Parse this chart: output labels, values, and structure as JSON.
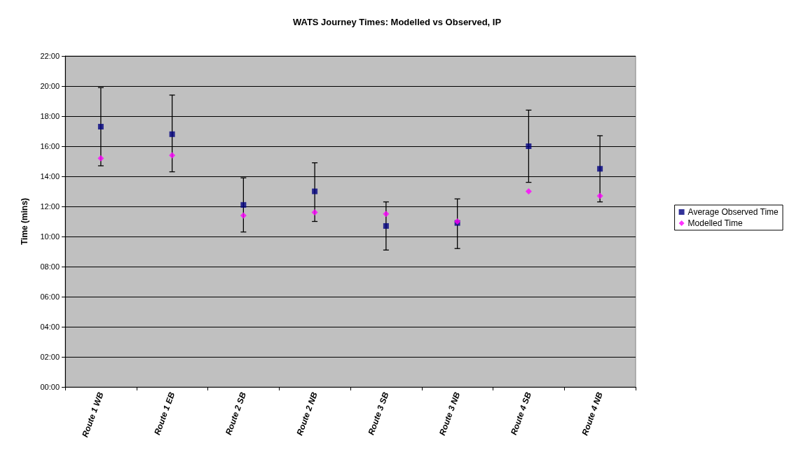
{
  "chart_data": {
    "type": "scatter",
    "title": "WATS Journey Times: Modelled vs Observed, IP",
    "ylabel": "Time (mins)",
    "categories": [
      "Route 1 WB",
      "Route 1 EB",
      "Route 2 SB",
      "Route 2 NB",
      "Route 3 SB",
      "Route 3 NB",
      "Route 4 SB",
      "Route 4 NB"
    ],
    "series": [
      {
        "name": "Average Observed Time",
        "color": "#000080",
        "marker": "square",
        "values": [
          17.3,
          16.8,
          12.1,
          13.0,
          10.7,
          10.9,
          16.0,
          14.5
        ],
        "errors": [
          [
            14.7,
            19.9
          ],
          [
            14.3,
            19.4
          ],
          [
            10.3,
            13.9
          ],
          [
            11.0,
            14.9
          ],
          [
            9.1,
            12.3
          ],
          [
            9.2,
            12.5
          ],
          [
            13.6,
            18.4
          ],
          [
            12.3,
            16.7
          ]
        ]
      },
      {
        "name": "Modelled Time",
        "color": "#ff00ff",
        "marker": "diamond",
        "values": [
          15.2,
          15.4,
          11.4,
          11.6,
          11.5,
          11.0,
          13.0,
          12.7
        ]
      }
    ],
    "ylim": [
      0,
      22
    ],
    "yticks": [
      {
        "value": 0,
        "label": "00:00"
      },
      {
        "value": 2,
        "label": "02:00"
      },
      {
        "value": 4,
        "label": "04:00"
      },
      {
        "value": 6,
        "label": "06:00"
      },
      {
        "value": 8,
        "label": "08:00"
      },
      {
        "value": 10,
        "label": "10:00"
      },
      {
        "value": 12,
        "label": "12:00"
      },
      {
        "value": 14,
        "label": "14:00"
      },
      {
        "value": 16,
        "label": "16:00"
      },
      {
        "value": 18,
        "label": "18:00"
      },
      {
        "value": 20,
        "label": "20:00"
      },
      {
        "value": 22,
        "label": "22:00"
      }
    ],
    "grid": "y",
    "legend": "right"
  }
}
